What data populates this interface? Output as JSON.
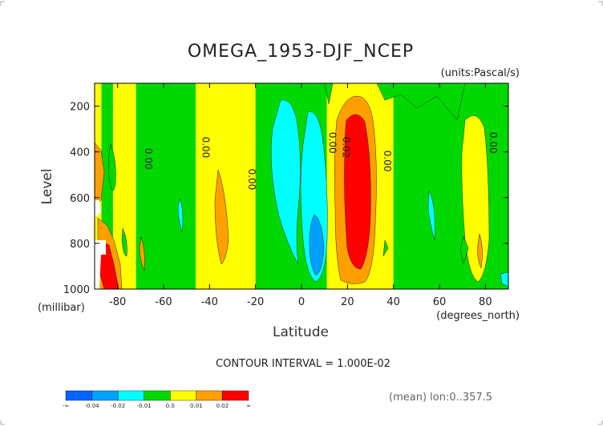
{
  "chart_data": {
    "type": "heatmap",
    "title": "OMEGA_1953-DJF_NCEP",
    "units_label": "(units:Pascal/s)",
    "xlabel": "Latitude",
    "x_units_label": "(degrees_north)",
    "ylabel": "Level",
    "y_units_label": "(millibar)",
    "xlim": [
      -90,
      90
    ],
    "ylim": [
      1000,
      100
    ],
    "x_ticks": [
      -80,
      -60,
      -40,
      -20,
      0,
      20,
      40,
      60,
      80
    ],
    "x_tick_labels": [
      "-80",
      "-60",
      "-40",
      "-20",
      "0",
      "20",
      "40",
      "60",
      "80"
    ],
    "y_ticks": [
      200,
      400,
      600,
      800,
      1000
    ],
    "y_tick_labels": [
      "200",
      "400",
      "600",
      "800",
      "1000"
    ],
    "contour_interval_text": "CONTOUR INTERVAL = 1.000E-02",
    "footer_text": "(mean) lon:0..357.5",
    "contour_labels": [
      {
        "x": -68,
        "y": 430,
        "text": "0.00"
      },
      {
        "x": -43,
        "y": 380,
        "text": "0.00"
      },
      {
        "x": -23,
        "y": 520,
        "text": "0.00"
      },
      {
        "x": 12,
        "y": 360,
        "text": "0.00"
      },
      {
        "x": 18,
        "y": 380,
        "text": "0.02"
      },
      {
        "x": 36,
        "y": 440,
        "text": "0.00"
      },
      {
        "x": 82,
        "y": 360,
        "text": "0.00"
      }
    ],
    "background_bins": [
      {
        "x": [
          -90,
          -87
        ],
        "color": "#ffff00",
        "value": "0.0..0.01"
      },
      {
        "x": [
          -87,
          -82
        ],
        "color": "#00d800",
        "value": "-0.01..0.0"
      },
      {
        "x": [
          -82,
          -72
        ],
        "color": "#ffff00",
        "value": "0.0..0.01"
      },
      {
        "x": [
          -72,
          -46
        ],
        "color": "#00d800",
        "value": "-0.01..0.0"
      },
      {
        "x": [
          -46,
          -20
        ],
        "color": "#ffff00",
        "value": "0.0..0.01"
      },
      {
        "x": [
          -20,
          11
        ],
        "color": "#00d800",
        "value": "-0.01..0.0"
      },
      {
        "x": [
          11,
          40
        ],
        "color": "#ffff00",
        "value": "0.0..0.01"
      },
      {
        "x": [
          40,
          90
        ],
        "color": "#00d800",
        "value": "-0.01..0.0"
      }
    ],
    "colorbar": {
      "bins": [
        {
          "color": "#0064ff",
          "value": "< -0.04"
        },
        {
          "color": "#00a0ff",
          "value": "-0.04..-0.02"
        },
        {
          "color": "#00ffff",
          "value": "-0.02..-0.01"
        },
        {
          "color": "#00d800",
          "value": "-0.01..0.0"
        },
        {
          "color": "#ffff00",
          "value": "0.0..0.01"
        },
        {
          "color": "#ffa000",
          "value": "0.01..0.02"
        },
        {
          "color": "#ff0000",
          "value": "> 0.02"
        }
      ],
      "labels": [
        "-∞",
        "-0.04",
        "-0.02",
        "-0.01",
        "0.0",
        "0.01",
        "0.02",
        "∞"
      ]
    }
  }
}
